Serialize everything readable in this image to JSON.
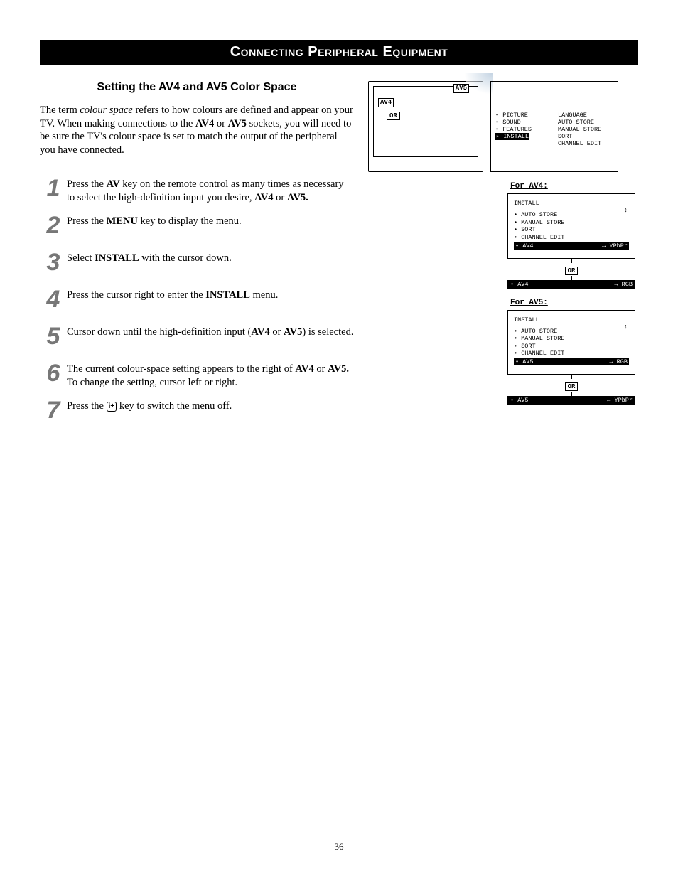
{
  "title": "Connecting Peripheral Equipment",
  "subhead": "Setting the AV4 and AV5 Color Space",
  "intro_html": "The term <em>colour space</em> refers to how colours are defined and appear on your TV. When making connections to the <b>AV4</b> or <b>AV5</b> sockets, you will need to be sure the TV's colour space is set to match the output of the peripheral you have connected.",
  "steps": [
    {
      "n": "1",
      "html": "Press the <b>AV</b> key on the remote control as many times as necessary to select the high-definition input you desire, <b>AV4</b> or <b>AV5.</b>"
    },
    {
      "n": "2",
      "html": "Press the <b>MENU</b> key to display the menu."
    },
    {
      "n": "3",
      "html": "Select <b>INSTALL</b> with the cursor down."
    },
    {
      "n": "4",
      "html": "Press the cursor right to enter the <b>INSTALL</b> menu."
    },
    {
      "n": "5",
      "html": "Cursor down until the high-definition input (<b>AV4</b> or <b>AV5</b>) is selected."
    },
    {
      "n": "6",
      "html": "The current colour-space setting appears to the right of <b>AV4</b> or <b>AV5.</b> To change the setting, cursor left or right."
    },
    {
      "n": "7",
      "html": "Press the <span class=\"info-icon\">i+</span> key to switch the menu off."
    }
  ],
  "tv": {
    "av4": "AV4",
    "av5": "AV5",
    "or": "OR"
  },
  "main_menu": {
    "left": [
      "• PICTURE",
      "• SOUND",
      "• FEATURES"
    ],
    "left_sel": "▸ INSTALL",
    "right": [
      "LANGUAGE",
      "AUTO STORE",
      "MANUAL STORE",
      "SORT",
      "CHANNEL EDIT"
    ]
  },
  "av4_section": {
    "label": "For AV4:",
    "title": "INSTALL",
    "items": [
      "• AUTO STORE",
      "• MANUAL STORE",
      "• SORT",
      "• CHANNEL EDIT"
    ],
    "sel": {
      "name": "• AV4",
      "val": "↔ YPbPr"
    },
    "alt": {
      "name": "• AV4",
      "val": "↔ RGB"
    }
  },
  "av5_section": {
    "label": "For AV5:",
    "title": "INSTALL",
    "items": [
      "• AUTO STORE",
      "• MANUAL STORE",
      "• SORT",
      "• CHANNEL EDIT"
    ],
    "sel": {
      "name": "• AV5",
      "val": "↔ RGB"
    },
    "alt": {
      "name": "• AV5",
      "val": "↔ YPbPr"
    }
  },
  "page_number": "36",
  "colors": {
    "bg": "#ffffff",
    "fg": "#000000",
    "step_num": "#777777"
  }
}
